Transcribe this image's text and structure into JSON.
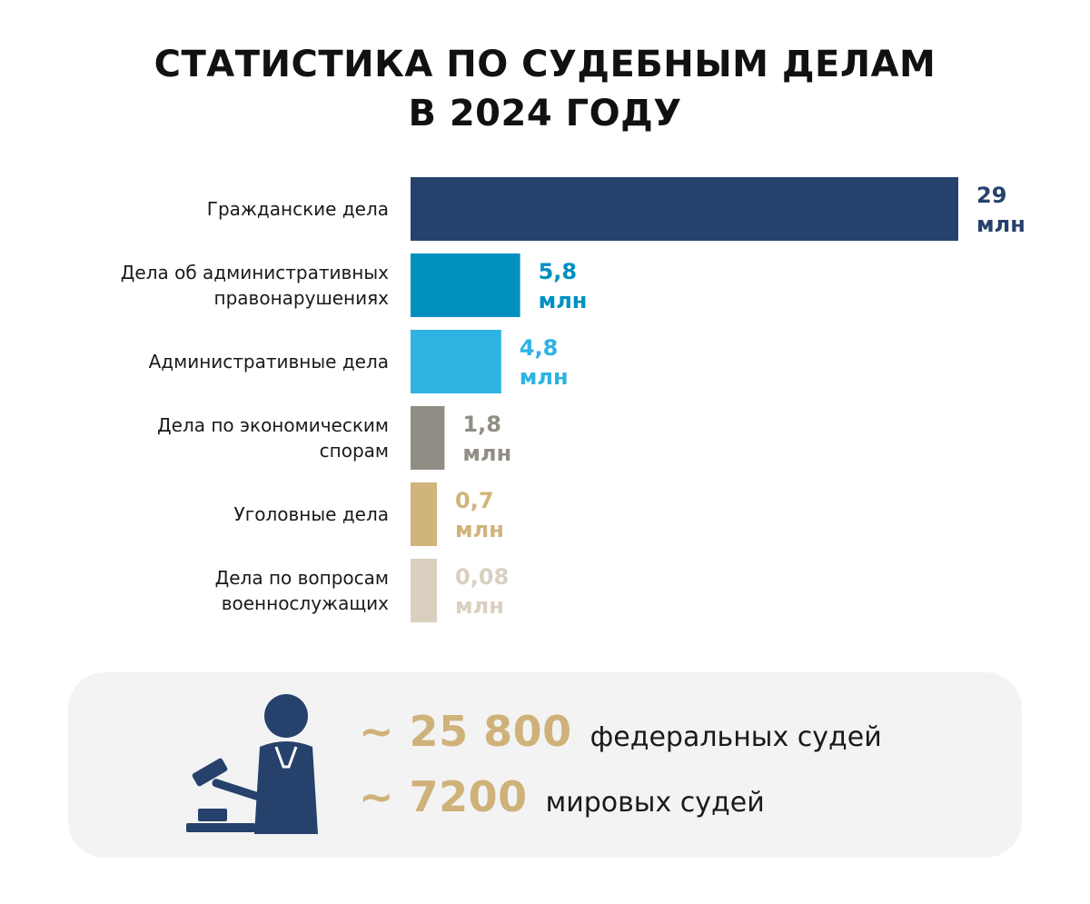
{
  "title": {
    "line1": "СТАТИСТИКА ПО СУДЕБНЫМ ДЕЛАМ",
    "line2": "В 2024 ГОДУ"
  },
  "chart_data": {
    "type": "bar",
    "orientation": "horizontal",
    "categories": [
      [
        "Гражданские дела"
      ],
      [
        "Дела об административных",
        "правонарушениях"
      ],
      [
        "Административные дела"
      ],
      [
        "Дела по экономическим",
        "спорам"
      ],
      [
        "Уголовные дела"
      ],
      [
        "Дела по вопросам",
        "военнослужащих"
      ]
    ],
    "values": [
      29,
      5.8,
      4.8,
      1.8,
      0.7,
      0.08
    ],
    "value_labels": [
      [
        "29",
        "млн"
      ],
      [
        "5,8",
        "млн"
      ],
      [
        "4,8",
        "млн"
      ],
      [
        "1,8",
        "млн"
      ],
      [
        "0,7",
        "млн"
      ],
      [
        "0,08",
        "млн"
      ]
    ],
    "colors": [
      "#26416b",
      "#0090c0",
      "#2eb3e3",
      "#918d85",
      "#d1b47c",
      "#dad0bf"
    ],
    "unit": "млн",
    "grid": false,
    "legend": "none"
  },
  "stats": [
    {
      "number": "~ 25 800",
      "text": "федеральных судей"
    },
    {
      "number": "~ 7200",
      "text": "мировых судей"
    }
  ],
  "icons": {
    "judge": "judge-with-gavel-icon",
    "color": "#26416b"
  }
}
